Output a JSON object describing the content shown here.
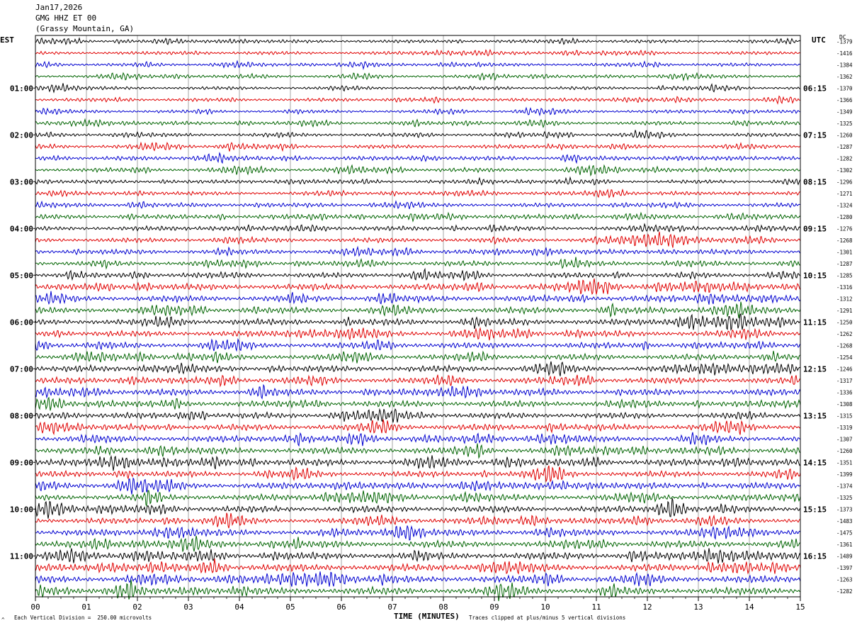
{
  "header": {
    "date": "Jan17,2026",
    "station": "GMG HHZ ET 00",
    "location": "(Grassy Mountain, GA)"
  },
  "left_axis_title": "EST",
  "right_axis_title": "UTC",
  "dc_header": "DC",
  "footer": {
    "scale_note": "Each Vertical Division =  250.00 microvolts",
    "clip_note": "Traces clipped at plus/minus 5 vertical divisions",
    "corner_mark": "^"
  },
  "colors": {
    "trace_cycle": [
      "#000000",
      "#e00000",
      "#0000d0",
      "#006400"
    ],
    "grid": "#808080",
    "frame": "#000000"
  },
  "chart_data": {
    "type": "line",
    "title": "",
    "xlabel": "TIME (MINUTES)",
    "ylabel": "",
    "x_ticks": [
      "00",
      "01",
      "02",
      "03",
      "04",
      "05",
      "06",
      "07",
      "08",
      "09",
      "10",
      "11",
      "12",
      "13",
      "14",
      "15"
    ],
    "xlim": [
      0,
      15
    ],
    "grid": true,
    "left_hour_labels": [
      "01:00",
      "02:00",
      "03:00",
      "04:00",
      "05:00",
      "06:00",
      "07:00",
      "08:00",
      "09:00",
      "10:00",
      "11:00"
    ],
    "right_hour_labels": [
      "06:15",
      "07:15",
      "08:15",
      "09:15",
      "10:15",
      "11:15",
      "12:15",
      "13:15",
      "14:15",
      "15:15",
      "16:15"
    ],
    "rows_per_hour": 4,
    "first_labeled_row": 4,
    "dc_offsets": [
      -1379,
      -1416,
      -1384,
      -1362,
      -1370,
      -1366,
      -1349,
      -1325,
      -1260,
      -1287,
      -1282,
      -1302,
      -1296,
      -1271,
      -1324,
      -1280,
      -1276,
      -1268,
      -1301,
      -1287,
      -1285,
      -1316,
      -1312,
      -1291,
      -1250,
      -1262,
      -1268,
      -1254,
      -1246,
      -1317,
      -1336,
      -1308,
      -1315,
      -1319,
      -1307,
      -1260,
      -1351,
      -1399,
      -1374,
      -1325,
      -1373,
      -1483,
      -1475,
      -1361,
      -1489,
      -1397,
      -1263,
      -1282
    ],
    "trace_amplitude_divisions": [
      0.4,
      0.4,
      0.4,
      0.4,
      0.4,
      0.4,
      0.4,
      0.45,
      0.45,
      0.45,
      0.5,
      0.5,
      0.45,
      0.45,
      0.5,
      0.55,
      0.55,
      0.55,
      0.6,
      0.6,
      0.6,
      0.75,
      0.75,
      0.75,
      0.75,
      0.7,
      0.7,
      0.7,
      0.75,
      0.75,
      0.75,
      0.75,
      0.7,
      0.75,
      0.75,
      0.8,
      0.8,
      0.7,
      0.75,
      0.75,
      0.75,
      0.7,
      0.75,
      0.8,
      0.85,
      0.85,
      0.85,
      0.85
    ]
  }
}
